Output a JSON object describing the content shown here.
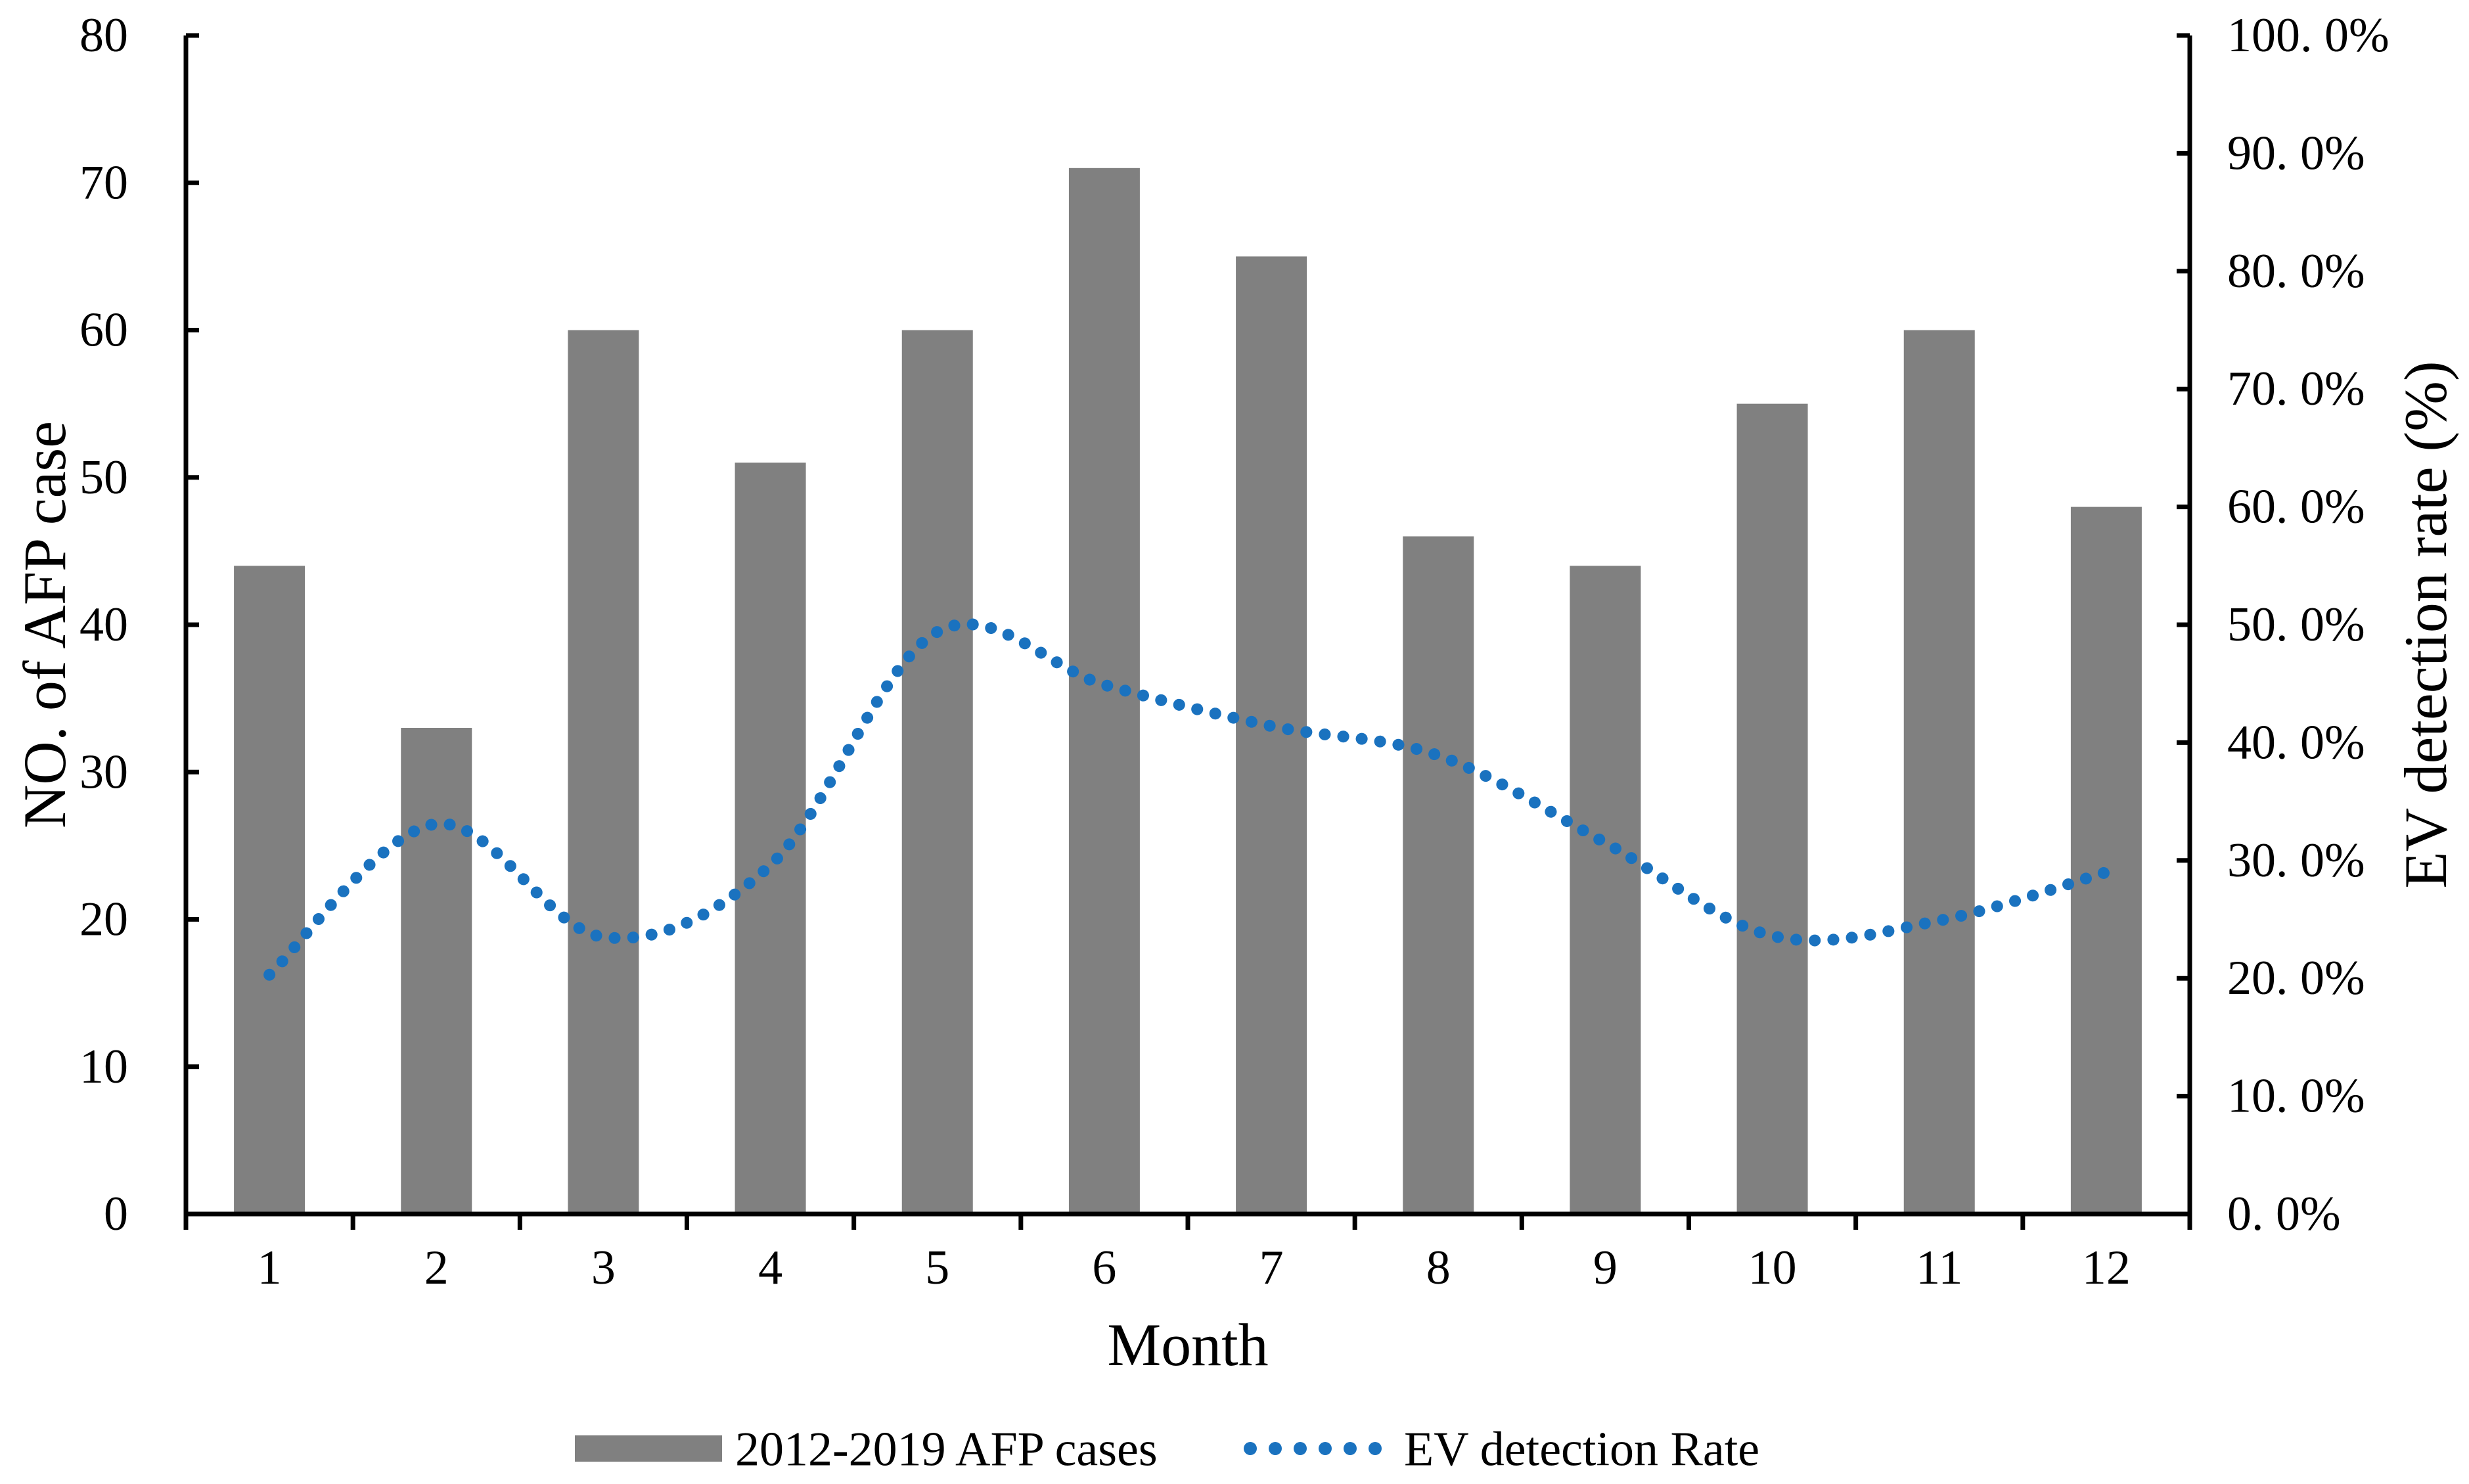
{
  "chart_data": {
    "type": "combo_bar_line",
    "title": "",
    "categories": [
      "1",
      "2",
      "3",
      "4",
      "5",
      "6",
      "7",
      "8",
      "9",
      "10",
      "11",
      "12"
    ],
    "series": [
      {
        "name": "2012-2019 AFP cases",
        "type": "bar",
        "axis": "left",
        "color": "#808080",
        "values": [
          44,
          33,
          60,
          51,
          60,
          71,
          65,
          46,
          44,
          55,
          60,
          48
        ]
      },
      {
        "name": "EV detection Rate",
        "type": "smooth_dotted_line",
        "axis": "right",
        "color": "#1a72bf",
        "values_percent": [
          20.3,
          33.1,
          23.5,
          29.6,
          49.4,
          44.9,
          41.4,
          38.9,
          31.5,
          23.6,
          24.9,
          29.0
        ]
      }
    ],
    "xlabel": "Month",
    "ylabel_left": "NO. of AFP case",
    "ylabel_right": "EV detection rate (%)",
    "y_left_axis": {
      "min": 0,
      "max": 80,
      "step": 10,
      "tick_labels": [
        "0",
        "10",
        "20",
        "30",
        "40",
        "50",
        "60",
        "70",
        "80"
      ]
    },
    "y_right_axis": {
      "min": 0,
      "max": 100,
      "step": 10,
      "tick_labels": [
        "0. 0%",
        "10. 0%",
        "20. 0%",
        "30. 0%",
        "40. 0%",
        "50. 0%",
        "60. 0%",
        "70. 0%",
        "80. 0%",
        "90. 0%",
        "100. 0%"
      ]
    },
    "grid": false,
    "legend_position": "bottom"
  },
  "legend": {
    "bar_label": "2012-2019 AFP cases",
    "line_label": "EV detection Rate"
  },
  "titles": {
    "x": "Month",
    "y_left": "NO. of AFP case",
    "y_right": "EV detection rate (%)"
  },
  "colors": {
    "bar": "#808080",
    "line": "#1a72bf",
    "axis": "#000000"
  }
}
